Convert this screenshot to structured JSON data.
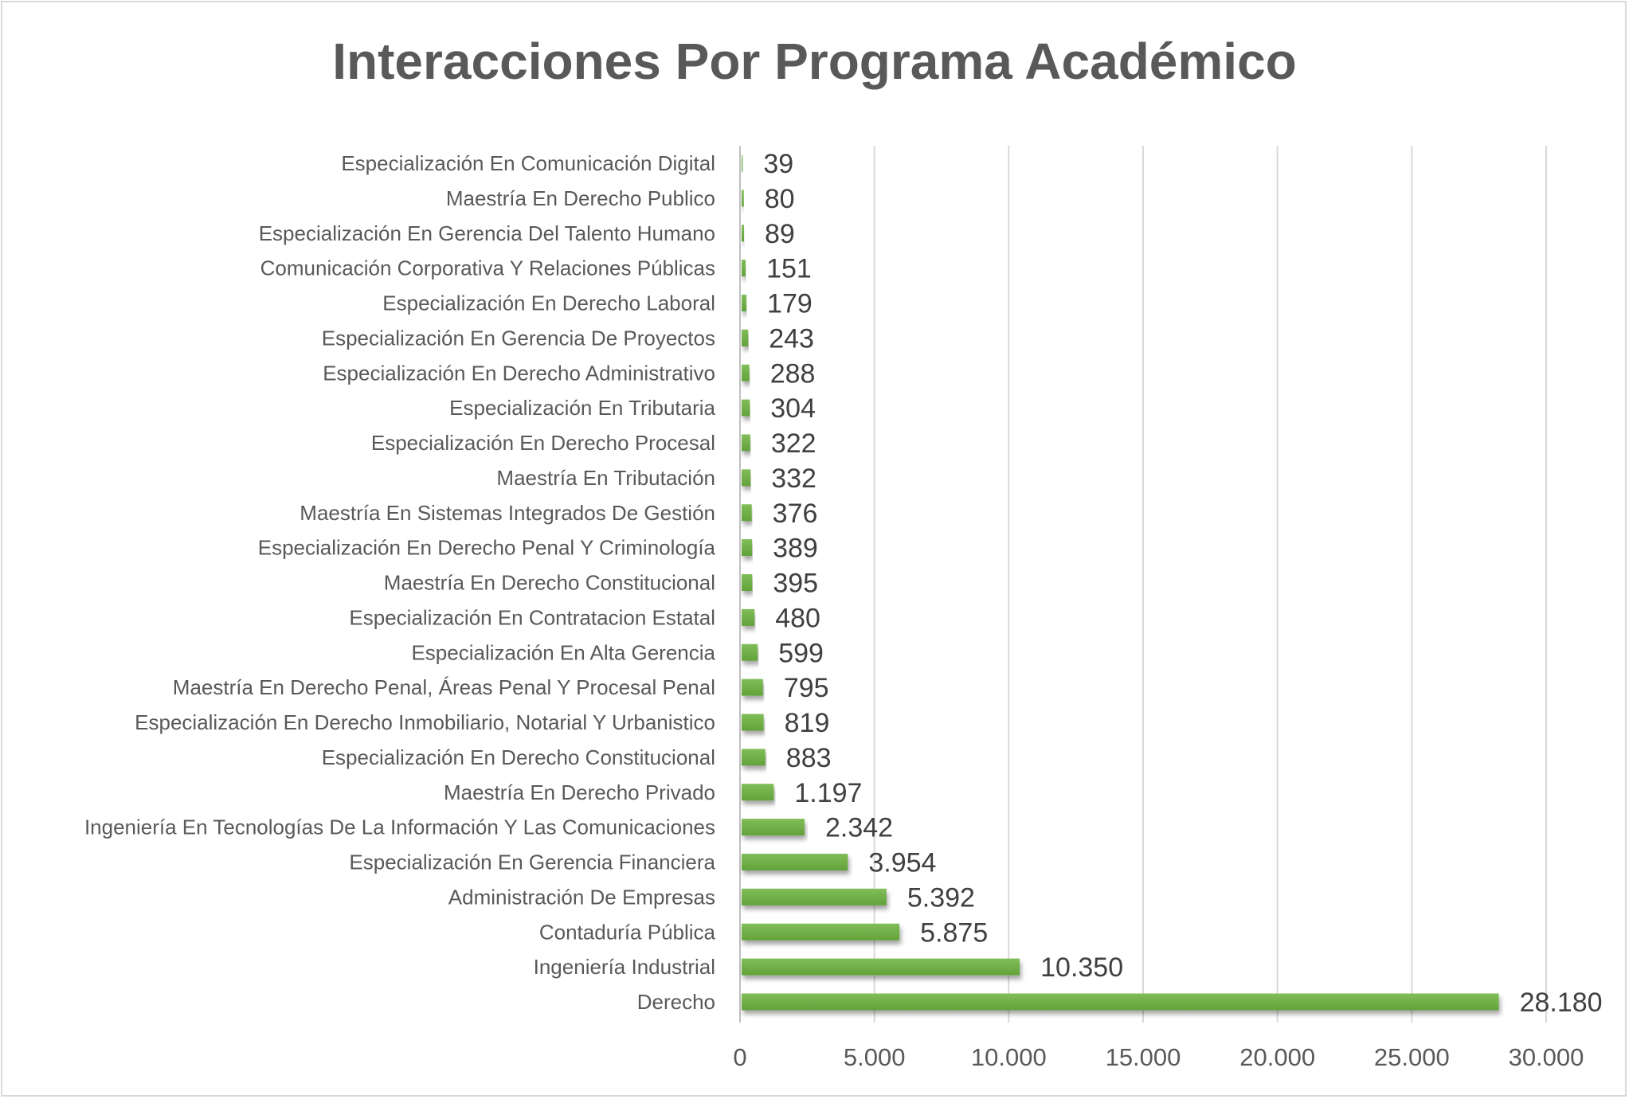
{
  "chart_data": {
    "type": "bar",
    "orientation": "horizontal",
    "title": "Interacciones Por Programa Académico",
    "xlabel": "",
    "ylabel": "",
    "xlim": [
      0,
      30000
    ],
    "grid": true,
    "legend": "none",
    "bar_color": "#70ad47",
    "x_ticks": [
      "0",
      "5.000",
      "10.000",
      "15.000",
      "20.000",
      "25.000",
      "30.000"
    ],
    "x_tick_values": [
      0,
      5000,
      10000,
      15000,
      20000,
      25000,
      30000
    ],
    "categories": [
      "Especialización En Comunicación Digital",
      "Maestría En Derecho Publico",
      "Especialización En Gerencia Del Talento Humano",
      "Comunicación Corporativa Y Relaciones Públicas",
      "Especialización En Derecho Laboral",
      "Especialización En Gerencia De Proyectos",
      "Especialización En Derecho Administrativo",
      "Especialización En Tributaria",
      "Especialización En Derecho Procesal",
      "Maestría En Tributación",
      "Maestría En Sistemas Integrados De Gestión",
      "Especialización En Derecho Penal Y Criminología",
      "Maestría En Derecho Constitucional",
      "Especialización En Contratacion Estatal",
      "Especialización En Alta Gerencia",
      "Maestría En Derecho Penal, Áreas Penal Y Procesal Penal",
      "Especialización En Derecho Inmobiliario, Notarial Y Urbanistico",
      "Especialización En Derecho Constitucional",
      "Maestría En Derecho Privado",
      "Ingeniería En Tecnologías De La Información Y Las Comunicaciones",
      "Especialización En Gerencia Financiera",
      "Administración De Empresas",
      "Contaduría Pública",
      "Ingeniería Industrial",
      "Derecho"
    ],
    "values": [
      39,
      80,
      89,
      151,
      179,
      243,
      288,
      304,
      322,
      332,
      376,
      389,
      395,
      480,
      599,
      795,
      819,
      883,
      1197,
      2342,
      3954,
      5392,
      5875,
      10350,
      28180
    ],
    "data_labels": [
      "39",
      "80",
      "89",
      "151",
      "179",
      "243",
      "288",
      "304",
      "322",
      "332",
      "376",
      "389",
      "395",
      "480",
      "599",
      "795",
      "819",
      "883",
      "1.197",
      "2.342",
      "3.954",
      "5.392",
      "5.875",
      "10.350",
      "28.180"
    ]
  }
}
